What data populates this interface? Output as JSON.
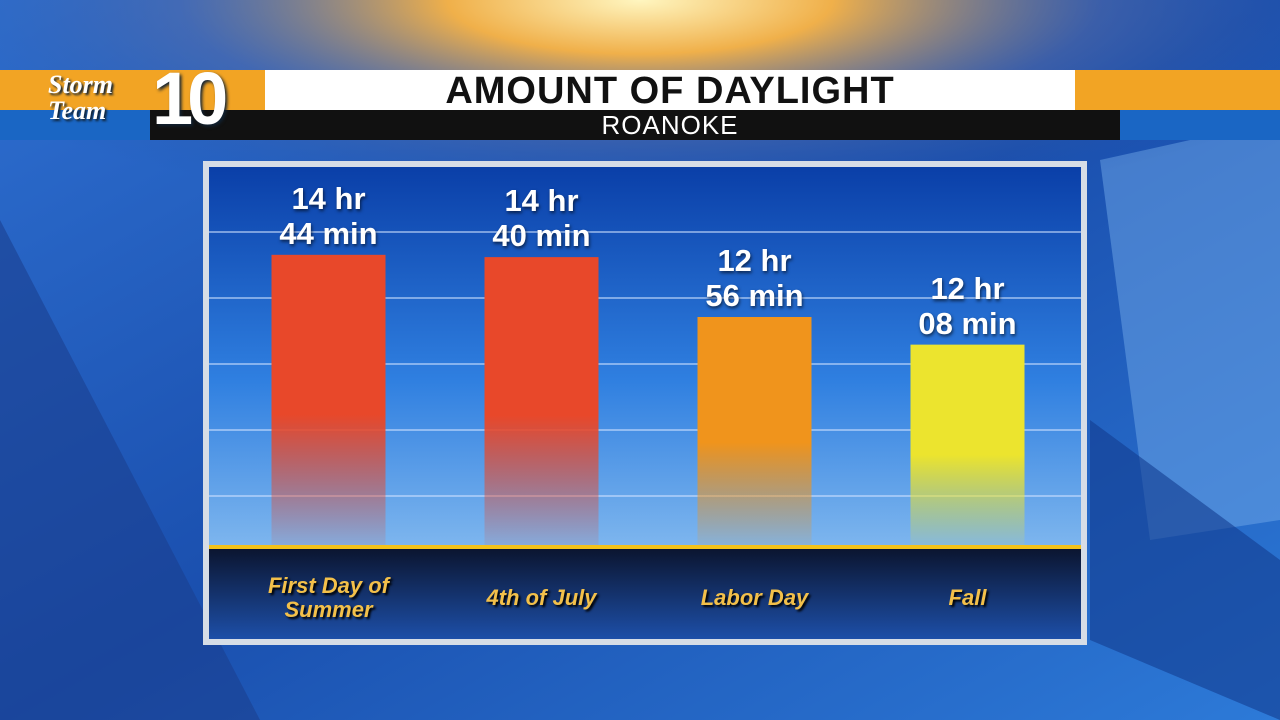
{
  "brand": {
    "name": "Storm Team",
    "number": "10"
  },
  "chart_data": {
    "type": "bar",
    "title": "AMOUNT OF DAYLIGHT",
    "subtitle": "ROANOKE",
    "categories": [
      "First Day of Summer",
      "4th of July",
      "Labor Day",
      "Fall"
    ],
    "values": [
      884,
      880,
      776,
      728
    ],
    "value_labels": [
      "14 hr\n44 min",
      "14 hr\n40 min",
      "12 hr\n56 min",
      "12 hr\n08 min"
    ],
    "colors": [
      "#e8482a",
      "#e8482a",
      "#f0941c",
      "#ece42e"
    ],
    "ylim": [
      380,
      1040
    ],
    "grid": true
  }
}
